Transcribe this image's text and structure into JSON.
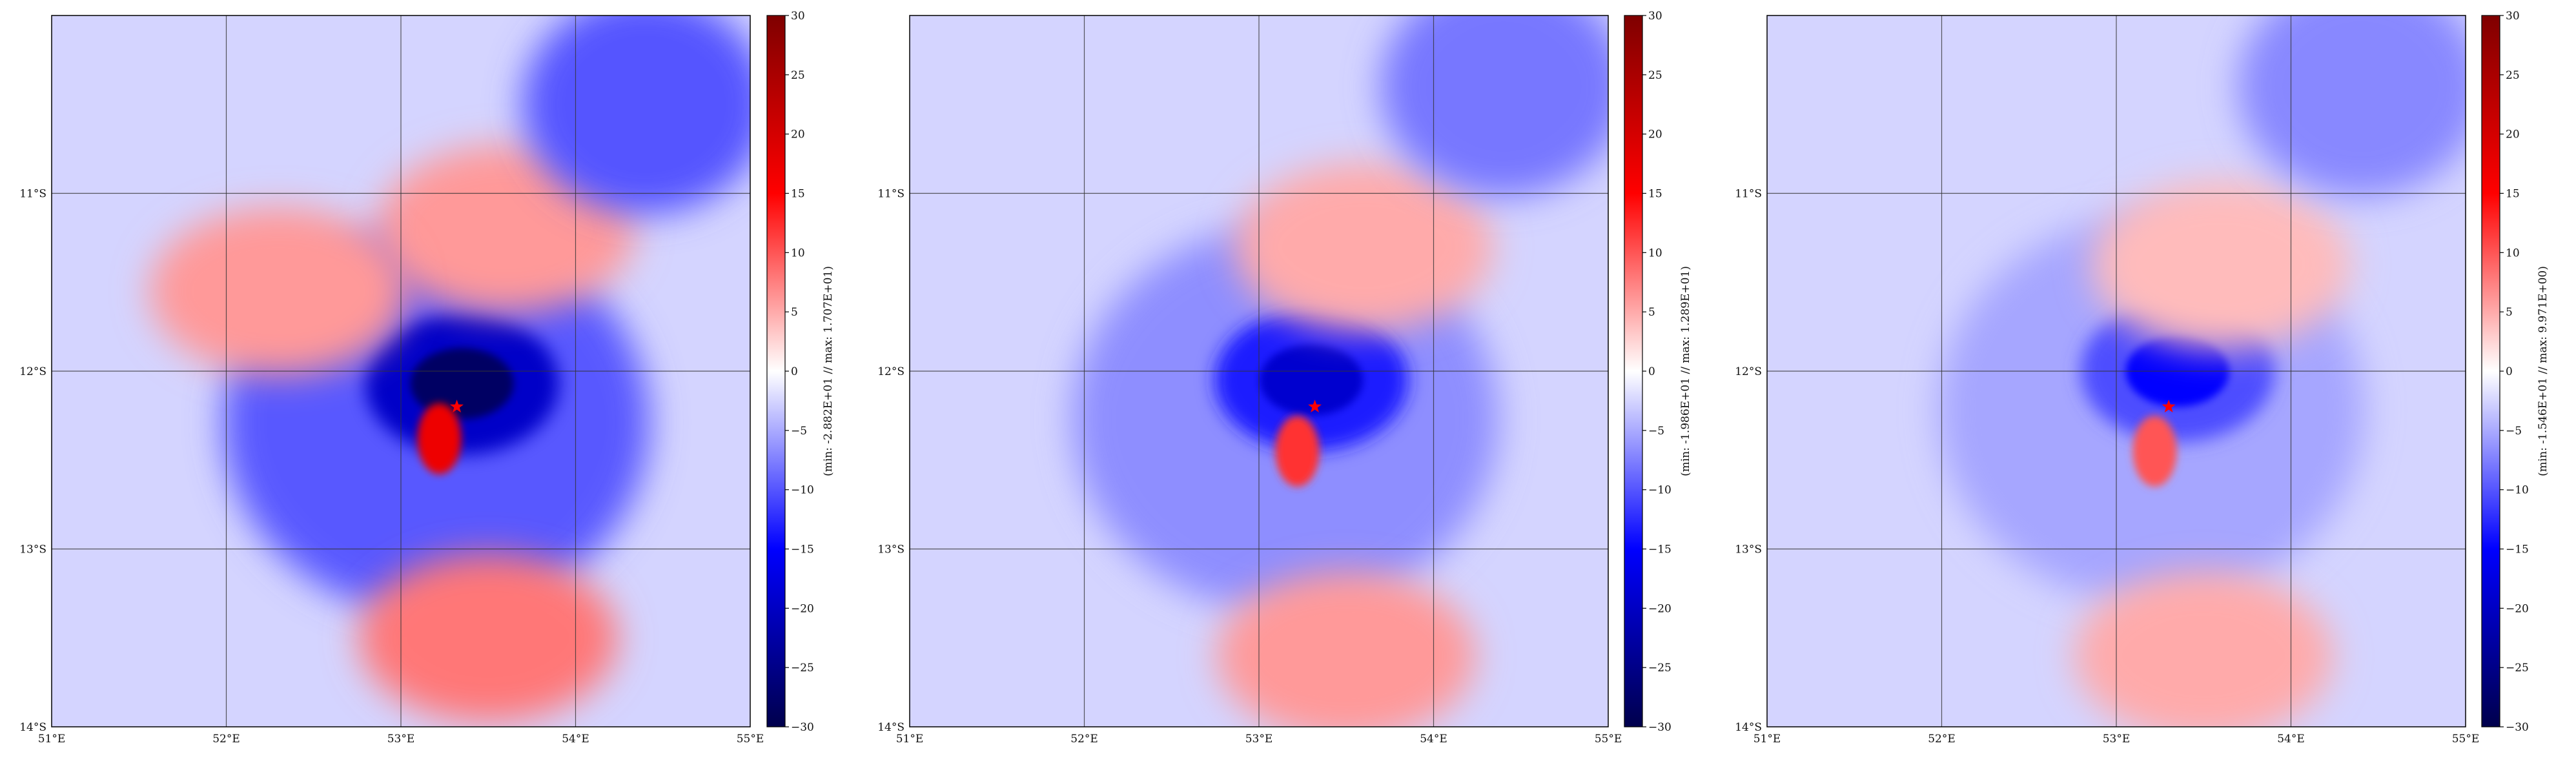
{
  "chart_data": [
    {
      "type": "heatmap",
      "panel": 1,
      "title": "",
      "xticks": [
        "51°E",
        "52°E",
        "53°E",
        "54°E",
        "55°E"
      ],
      "yticks": [
        "11°S",
        "12°S",
        "13°S",
        "14°S"
      ],
      "xlim": [
        51,
        55
      ],
      "ylim": [
        -14,
        -10
      ],
      "grid": true,
      "colormap": "seismic",
      "colorbar": {
        "range": [
          -30,
          30
        ],
        "ticks": [
          30,
          25,
          20,
          15,
          10,
          5,
          0,
          -5,
          -10,
          -15,
          -20,
          -25,
          -30
        ],
        "label": "(min: -2.882E+01 // max:  1.707E+01)"
      },
      "marker": {
        "lon": 53.32,
        "lat": -12.2,
        "symbol": "*",
        "color": "#ff0000"
      },
      "features": [
        {
          "kind": "cyclone-core-negative",
          "lon": 53.35,
          "lat": -12.07,
          "value": -28
        },
        {
          "kind": "positive-lobe",
          "lon": 53.22,
          "lat": -12.38,
          "value": 17
        },
        {
          "kind": "positive-region",
          "lon": 53.6,
          "lat": -11.2,
          "value": 6
        },
        {
          "kind": "positive-region",
          "lon": 52.3,
          "lat": -11.55,
          "value": 6
        },
        {
          "kind": "positive-region",
          "lon": 53.5,
          "lat": -13.5,
          "value": 8
        },
        {
          "kind": "negative-region",
          "lon": 54.4,
          "lat": -10.5,
          "value": -10
        }
      ]
    },
    {
      "type": "heatmap",
      "panel": 2,
      "title": "",
      "xticks": [
        "51°E",
        "52°E",
        "53°E",
        "54°E",
        "55°E"
      ],
      "yticks": [
        "11°S",
        "12°S",
        "13°S",
        "14°S"
      ],
      "xlim": [
        51,
        55
      ],
      "ylim": [
        -14,
        -10
      ],
      "grid": true,
      "colormap": "seismic",
      "colorbar": {
        "range": [
          -30,
          30
        ],
        "ticks": [
          30,
          25,
          20,
          15,
          10,
          5,
          0,
          -5,
          -10,
          -15,
          -20,
          -25,
          -30
        ],
        "label": "(min: -1.986E+01 // max:  1.289E+01)"
      },
      "marker": {
        "lon": 53.32,
        "lat": -12.2,
        "symbol": "*",
        "color": "#ff0000"
      },
      "features": [
        {
          "kind": "cyclone-core-negative",
          "lon": 53.3,
          "lat": -12.05,
          "value": -19
        },
        {
          "kind": "positive-lobe",
          "lon": 53.22,
          "lat": -12.45,
          "value": 12
        },
        {
          "kind": "positive-region",
          "lon": 53.6,
          "lat": -11.3,
          "value": 5
        },
        {
          "kind": "positive-region",
          "lon": 53.5,
          "lat": -13.6,
          "value": 6
        },
        {
          "kind": "negative-region",
          "lon": 54.4,
          "lat": -10.4,
          "value": -8
        }
      ]
    },
    {
      "type": "heatmap",
      "panel": 3,
      "title": "",
      "xticks": [
        "51°E",
        "52°E",
        "53°E",
        "54°E",
        "55°E"
      ],
      "yticks": [
        "11°S",
        "12°S",
        "13°S",
        "14°S"
      ],
      "xlim": [
        51,
        55
      ],
      "ylim": [
        -14,
        -10
      ],
      "grid": true,
      "colormap": "seismic",
      "colorbar": {
        "range": [
          -30,
          30
        ],
        "ticks": [
          30,
          25,
          20,
          15,
          10,
          5,
          0,
          -5,
          -10,
          -15,
          -20,
          -25,
          -30
        ],
        "label": "(min: -1.546E+01 // max:  9.971E+00)"
      },
      "marker": {
        "lon": 53.3,
        "lat": -12.2,
        "symbol": "*",
        "color": "#ff0000"
      },
      "features": [
        {
          "kind": "cyclone-core-negative",
          "lon": 53.35,
          "lat": -12.0,
          "value": -15
        },
        {
          "kind": "positive-lobe",
          "lon": 53.22,
          "lat": -12.45,
          "value": 10
        },
        {
          "kind": "positive-region",
          "lon": 53.6,
          "lat": -11.4,
          "value": 4
        },
        {
          "kind": "positive-region",
          "lon": 53.5,
          "lat": -13.6,
          "value": 5
        },
        {
          "kind": "negative-region",
          "lon": 54.4,
          "lat": -10.4,
          "value": -7
        }
      ]
    }
  ]
}
